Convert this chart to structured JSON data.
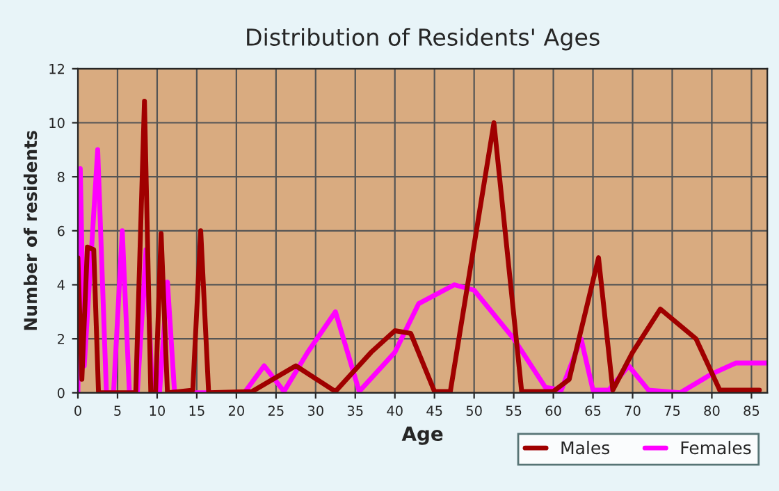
{
  "chart_data": {
    "type": "line",
    "title": "Distribution of Residents' Ages",
    "xlabel": "Age",
    "ylabel": "Number of residents",
    "xlim": [
      0,
      87
    ],
    "xticks": [
      0,
      5,
      10,
      15,
      20,
      25,
      30,
      35,
      40,
      45,
      50,
      55,
      60,
      65,
      70,
      75,
      80,
      85
    ],
    "ylim": [
      0,
      12
    ],
    "yticks": [
      0,
      2,
      4,
      6,
      8,
      10,
      12
    ],
    "grid": true,
    "legend": "bottom right",
    "marker": "none",
    "line_style": "solid",
    "series": [
      {
        "name": "Males",
        "color": "#a00000",
        "x": [
          0,
          0.5,
          1.2,
          2,
          2.6,
          7.3,
          8.4,
          9.2,
          9.8,
          10.5,
          11.3,
          14.5,
          15.5,
          16.5,
          22,
          27.5,
          32.5,
          37,
          40,
          42,
          45,
          47,
          52.5,
          56,
          60,
          62,
          65.7,
          67.5,
          70,
          73.5,
          78,
          81,
          86
        ],
        "values": [
          5,
          0.5,
          5.4,
          5.3,
          0,
          0,
          10.8,
          0,
          0,
          5.9,
          0,
          0.1,
          6,
          0,
          0.05,
          1,
          0.05,
          1.5,
          2.3,
          2.2,
          0.05,
          0.05,
          10,
          0.05,
          0.05,
          0.5,
          5,
          0.1,
          1.5,
          3.1,
          2,
          0.1,
          0.1
        ]
      },
      {
        "name": "Females",
        "color": "#ff00ff",
        "x": [
          0,
          0.3,
          0.8,
          2.5,
          3.6,
          4.5,
          5.6,
          6.5,
          7.5,
          8.6,
          9.4,
          10.3,
          11.3,
          12.2,
          21,
          23.5,
          26,
          29,
          32.5,
          35.5,
          40,
          43,
          47.5,
          50,
          55,
          59,
          61,
          63.5,
          65,
          67,
          69.5,
          72,
          76,
          80,
          83,
          87
        ],
        "values": [
          0,
          8.3,
          1,
          9,
          0,
          0,
          6,
          0,
          0,
          5.3,
          0,
          0,
          4.1,
          0,
          0,
          1,
          0.05,
          1.5,
          3,
          0.05,
          1.5,
          3.3,
          4,
          3.8,
          2,
          0.2,
          0.1,
          2,
          0.1,
          0.1,
          1,
          0.1,
          0,
          0.7,
          1.1,
          1.1
        ]
      }
    ]
  }
}
